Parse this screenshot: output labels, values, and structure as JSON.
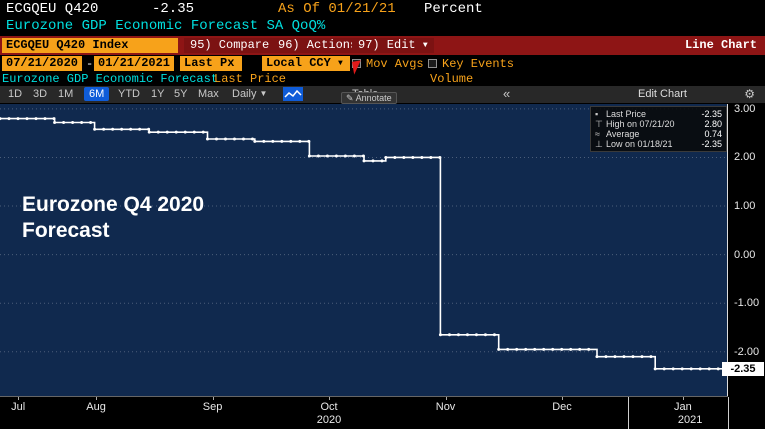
{
  "header": {
    "ticker": "ECGQEU Q420",
    "last_value": "-2.35",
    "as_of": "As Of 01/21/21",
    "unit": "Percent",
    "description": "Eurozone GDP Economic Forecast SA QoQ%"
  },
  "menubar": {
    "security": "ECGQEU Q420 Index",
    "compare": "95) Compare",
    "actions": "96) Actions",
    "edit": "97) Edit",
    "view_mode": "Line Chart"
  },
  "controls": {
    "date_from": "07/21/2020",
    "date_sep": "-",
    "date_to": "01/21/2021",
    "price_field": "Last Px",
    "currency": "Local CCY",
    "mov_avgs_label": "Mov Avgs",
    "key_events_label": "Key Events"
  },
  "series_row": {
    "name": "Eurozone GDP Economic Forecast",
    "price_label": "Last Price",
    "volume_label": "Volume"
  },
  "toolbar": {
    "periods": [
      "1D",
      "3D",
      "1M",
      "6M",
      "YTD",
      "1Y",
      "5Y",
      "Max"
    ],
    "active_period": "6M",
    "frequency": "Daily",
    "table_label": "Table",
    "annotate_label": "Annotate",
    "collapse_label": "«",
    "edit_chart_label": "Edit Chart"
  },
  "legend": {
    "rows": [
      {
        "marker": "▪",
        "label": "Last Price",
        "value": "-2.35"
      },
      {
        "marker": "⊤",
        "label": "High on 07/21/20",
        "value": "2.80"
      },
      {
        "marker": "≈",
        "label": "Average",
        "value": "0.74"
      },
      {
        "marker": "⊥",
        "label": "Low on 01/18/21",
        "value": "-2.35"
      }
    ]
  },
  "annotation": {
    "line1": "Eurozone Q4 2020",
    "line2": "Forecast"
  },
  "chart_data": {
    "type": "line",
    "step": true,
    "title": "Eurozone GDP Economic Forecast SA QoQ%",
    "ylabel": "Percent",
    "ylim": [
      -2.93,
      3.1
    ],
    "yticks": [
      3.0,
      2.0,
      1.0,
      0.0,
      -1.0,
      -2.0
    ],
    "last_price": -2.35,
    "high": 2.8,
    "low": -2.35,
    "average": 0.74,
    "x_axis": {
      "months": [
        "Jul",
        "Aug",
        "Sep",
        "Oct",
        "Nov",
        "Dec",
        "Jan"
      ],
      "month_x": [
        0.025,
        0.132,
        0.292,
        0.452,
        0.612,
        0.772,
        0.938
      ],
      "years": [
        {
          "label": "2020",
          "x": 0.452
        },
        {
          "label": "2021",
          "x": 0.948
        }
      ],
      "year_divider_x": 0.863
    },
    "points": [
      [
        0.0,
        2.8
      ],
      [
        0.075,
        2.8
      ],
      [
        0.075,
        2.72
      ],
      [
        0.13,
        2.72
      ],
      [
        0.13,
        2.58
      ],
      [
        0.205,
        2.58
      ],
      [
        0.205,
        2.52
      ],
      [
        0.285,
        2.52
      ],
      [
        0.285,
        2.38
      ],
      [
        0.35,
        2.38
      ],
      [
        0.35,
        2.33
      ],
      [
        0.425,
        2.33
      ],
      [
        0.425,
        2.03
      ],
      [
        0.5,
        2.03
      ],
      [
        0.5,
        1.93
      ],
      [
        0.53,
        1.93
      ],
      [
        0.53,
        2.0
      ],
      [
        0.605,
        2.0
      ],
      [
        0.605,
        -1.65
      ],
      [
        0.685,
        -1.65
      ],
      [
        0.685,
        -1.95
      ],
      [
        0.82,
        -1.95
      ],
      [
        0.82,
        -2.1
      ],
      [
        0.9,
        -2.1
      ],
      [
        0.9,
        -2.35
      ],
      [
        1.0,
        -2.35
      ]
    ]
  },
  "colors": {
    "amber": "#f7a21a",
    "red_bar": "#8e1515",
    "cyan": "#00e0e0",
    "navy": "#10294e",
    "blue": "#0f5cd8",
    "line": "#ffffff"
  }
}
